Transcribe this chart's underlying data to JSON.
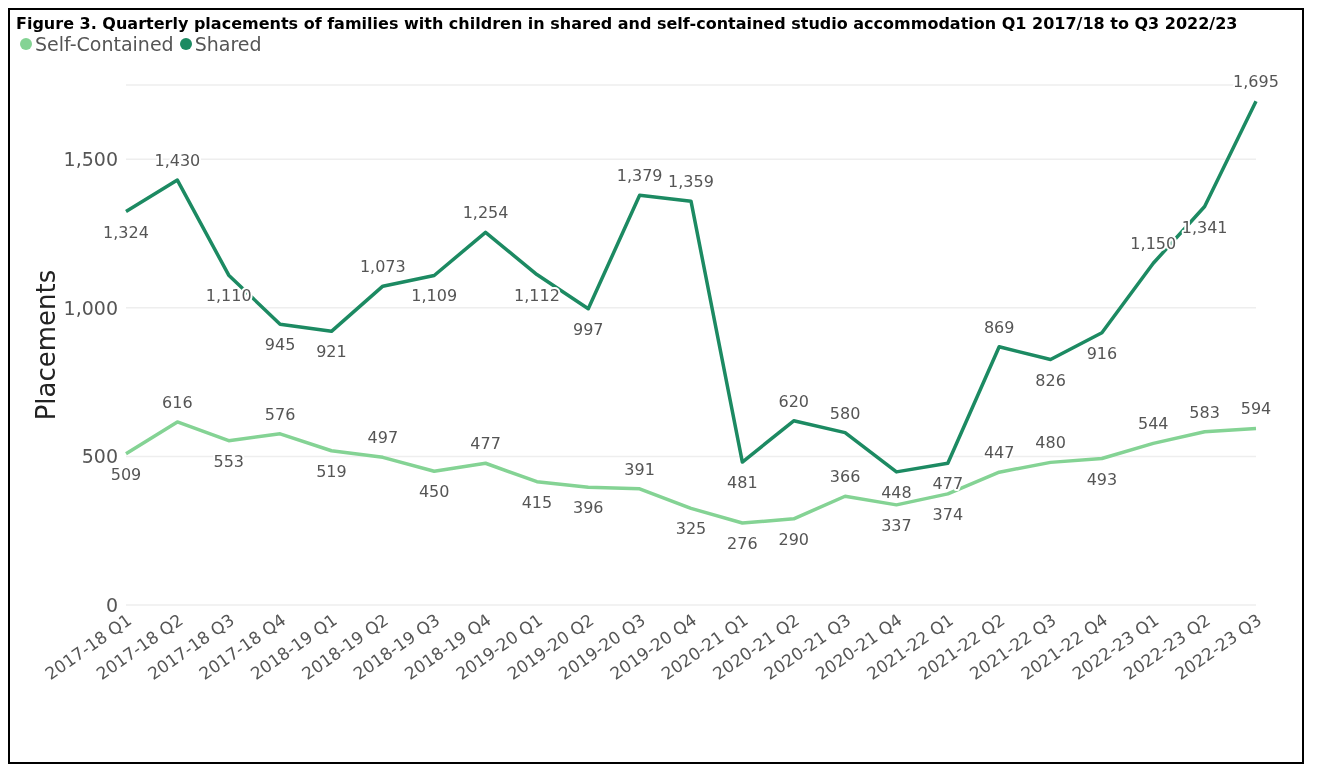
{
  "chart_data": {
    "type": "line",
    "title": "Figure 3. Quarterly placements of families with children in shared and self-contained studio accommodation Q1 2017/18 to Q3 2022/23",
    "ylabel": "Placements",
    "categories": [
      "2017-18 Q1",
      "2017-18 Q2",
      "2017-18 Q3",
      "2017-18 Q4",
      "2018-19 Q1",
      "2018-19 Q2",
      "2018-19 Q3",
      "2018-19 Q4",
      "2019-20 Q1",
      "2019-20 Q2",
      "2019-20 Q3",
      "2019-20 Q4",
      "2020-21 Q1",
      "2020-21 Q2",
      "2020-21 Q3",
      "2020-21 Q4",
      "2021-22 Q1",
      "2021-22 Q2",
      "2021-22 Q3",
      "2021-22 Q4",
      "2022-23 Q1",
      "2022-23 Q2",
      "2022-23 Q3"
    ],
    "series": [
      {
        "name": "Self-Contained",
        "color": "#84d394",
        "values": [
          509,
          616,
          553,
          576,
          519,
          497,
          450,
          477,
          415,
          396,
          391,
          325,
          276,
          290,
          366,
          337,
          374,
          447,
          480,
          493,
          544,
          583,
          594
        ]
      },
      {
        "name": "Shared",
        "color": "#1c8a62",
        "values": [
          1324,
          1430,
          1110,
          945,
          921,
          1073,
          1109,
          1254,
          1112,
          997,
          1379,
          1359,
          481,
          620,
          580,
          448,
          477,
          869,
          826,
          916,
          1150,
          1341,
          1695
        ],
        "value_labels": [
          "1,324",
          "1,430",
          "1,110",
          "945",
          "921",
          "1,073",
          "1,109",
          "1,254",
          "1,112",
          "997",
          "1,379",
          "1,359",
          "481",
          "620",
          "580",
          "448",
          "477",
          "869",
          "826",
          "916",
          "1,150",
          "1,341",
          "1,695"
        ]
      }
    ],
    "ylim": [
      0,
      1750
    ],
    "yticks": [
      0,
      {
        "value": 500,
        "label": "500"
      },
      {
        "value": 1000,
        "label": "1,000"
      },
      {
        "value": 1500,
        "label": "1,500"
      }
    ],
    "grid": "y",
    "legend": "top left",
    "marker": "none",
    "line_style": "solid",
    "data_labels": true
  }
}
